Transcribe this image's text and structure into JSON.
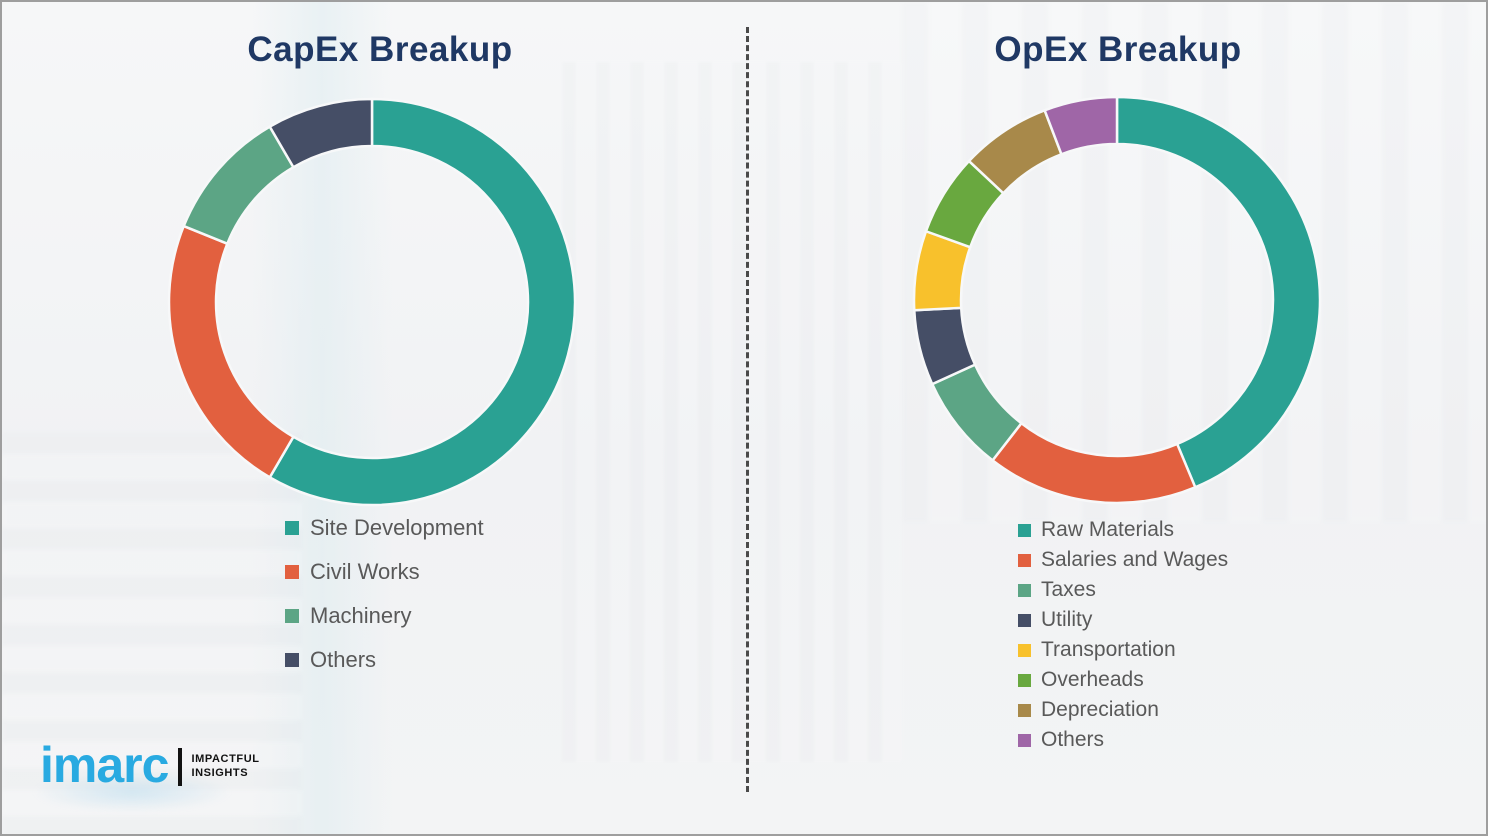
{
  "page": {
    "background_color": "#f2f3f4",
    "border_color": "#9e9e9e",
    "title_color": "#1f3864",
    "legend_text_color": "#595959",
    "divider_style": "vertical-dashed",
    "divider_color": "#4a4a4a"
  },
  "chart_data": [
    {
      "type": "pie",
      "subtype": "donut",
      "title": "CapEx Breakup",
      "categories": [
        "Site Development",
        "Civil Works",
        "Machinery",
        "Others"
      ],
      "values": [
        58.4,
        22.7,
        10.5,
        8.4
      ],
      "values_unit": "percent (estimated from arc angles; no numeric labels shown)",
      "colors": [
        "#2aa193",
        "#e2603f",
        "#5ca585",
        "#454e66"
      ],
      "start_angle_deg": 0,
      "direction": "clockwise",
      "legend_position": "below-left",
      "data_labels": false
    },
    {
      "type": "pie",
      "subtype": "donut",
      "title": "OpEx Breakup",
      "categories": [
        "Raw Materials",
        "Salaries and Wages",
        "Taxes",
        "Utility",
        "Transportation",
        "Overheads",
        "Depreciation",
        "Others"
      ],
      "values": [
        43.7,
        16.8,
        7.7,
        6.0,
        6.3,
        6.5,
        7.2,
        5.8
      ],
      "values_unit": "percent (estimated from arc angles; no numeric labels shown)",
      "colors": [
        "#2aa193",
        "#e2603f",
        "#5ca585",
        "#454e66",
        "#f8c12c",
        "#69a83f",
        "#a8894a",
        "#9f66a7"
      ],
      "start_angle_deg": 0,
      "direction": "clockwise",
      "legend_position": "below-left",
      "data_labels": false
    }
  ],
  "logo": {
    "brand": "imarc",
    "brand_color": "#29aae1",
    "tagline_line1": "IMPACTFUL",
    "tagline_line2": "INSIGHTS"
  }
}
